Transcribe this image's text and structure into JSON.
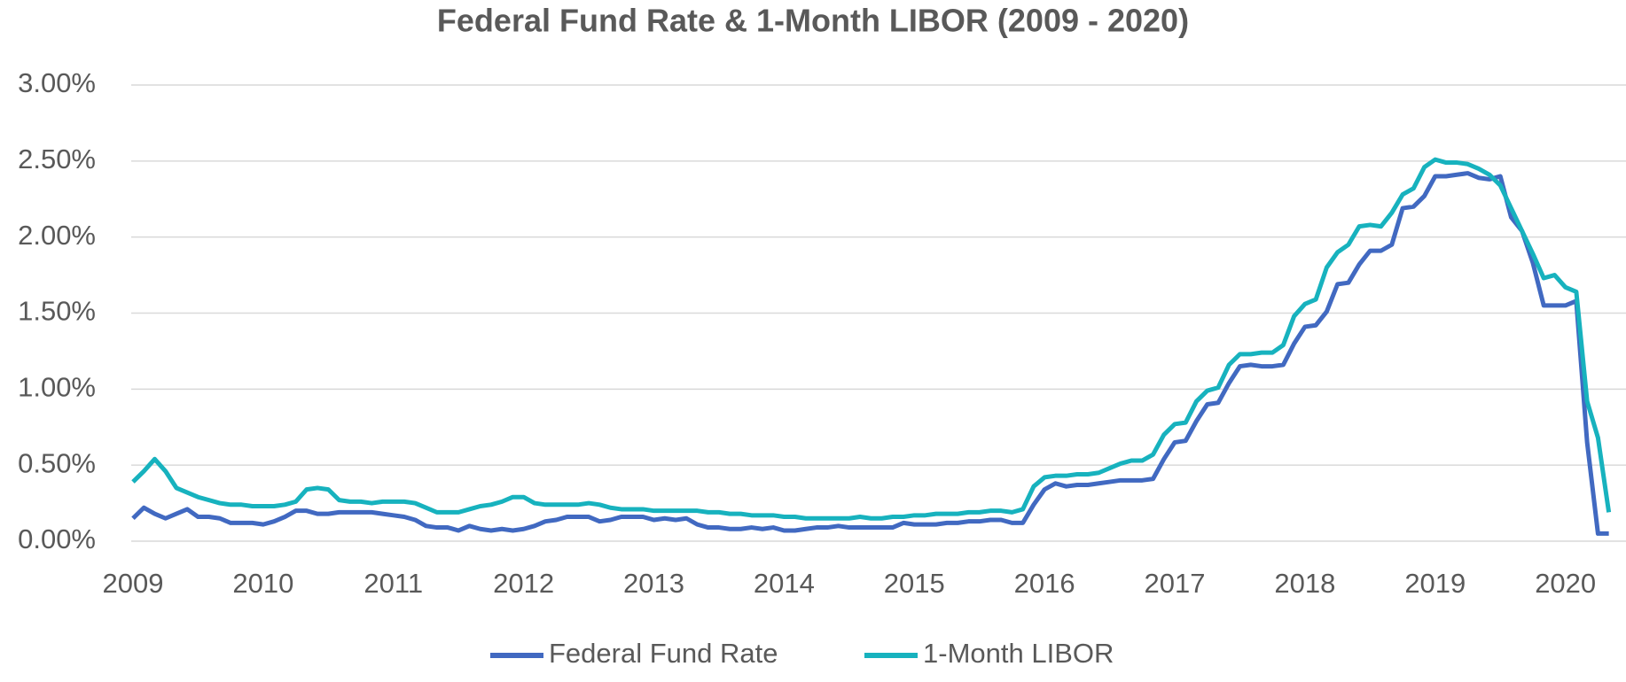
{
  "chart_data": {
    "type": "line",
    "title": "Federal Fund Rate & 1-Month LIBOR (2009 - 2020)",
    "categories": [
      "2009",
      null,
      null,
      null,
      null,
      null,
      null,
      null,
      null,
      null,
      null,
      null,
      "2010",
      null,
      null,
      null,
      null,
      null,
      null,
      null,
      null,
      null,
      null,
      null,
      "2011",
      null,
      null,
      null,
      null,
      null,
      null,
      null,
      null,
      null,
      null,
      null,
      "2012",
      null,
      null,
      null,
      null,
      null,
      null,
      null,
      null,
      null,
      null,
      null,
      "2013",
      null,
      null,
      null,
      null,
      null,
      null,
      null,
      null,
      null,
      null,
      null,
      "2014",
      null,
      null,
      null,
      null,
      null,
      null,
      null,
      null,
      null,
      null,
      null,
      "2015",
      null,
      null,
      null,
      null,
      null,
      null,
      null,
      null,
      null,
      null,
      null,
      "2016",
      null,
      null,
      null,
      null,
      null,
      null,
      null,
      null,
      null,
      null,
      null,
      "2017",
      null,
      null,
      null,
      null,
      null,
      null,
      null,
      null,
      null,
      null,
      null,
      "2018",
      null,
      null,
      null,
      null,
      null,
      null,
      null,
      null,
      null,
      null,
      null,
      "2019",
      null,
      null,
      null,
      null,
      null,
      null,
      null,
      null,
      null,
      null,
      null,
      "2020",
      null,
      null,
      null,
      null
    ],
    "series": [
      {
        "name": "Federal Fund Rate",
        "color": "#4169c1",
        "values": [
          0.15,
          0.22,
          0.18,
          0.15,
          0.18,
          0.21,
          0.16,
          0.16,
          0.15,
          0.12,
          0.12,
          0.12,
          0.11,
          0.13,
          0.16,
          0.2,
          0.2,
          0.18,
          0.18,
          0.19,
          0.19,
          0.19,
          0.19,
          0.18,
          0.17,
          0.16,
          0.14,
          0.1,
          0.09,
          0.09,
          0.07,
          0.1,
          0.08,
          0.07,
          0.08,
          0.07,
          0.08,
          0.1,
          0.13,
          0.14,
          0.16,
          0.16,
          0.16,
          0.13,
          0.14,
          0.16,
          0.16,
          0.16,
          0.14,
          0.15,
          0.14,
          0.15,
          0.11,
          0.09,
          0.09,
          0.08,
          0.08,
          0.09,
          0.08,
          0.09,
          0.07,
          0.07,
          0.08,
          0.09,
          0.09,
          0.1,
          0.09,
          0.09,
          0.09,
          0.09,
          0.09,
          0.12,
          0.11,
          0.11,
          0.11,
          0.12,
          0.12,
          0.13,
          0.13,
          0.14,
          0.14,
          0.12,
          0.12,
          0.24,
          0.34,
          0.38,
          0.36,
          0.37,
          0.37,
          0.38,
          0.39,
          0.4,
          0.4,
          0.4,
          0.41,
          0.54,
          0.65,
          0.66,
          0.79,
          0.9,
          0.91,
          1.04,
          1.15,
          1.16,
          1.15,
          1.15,
          1.16,
          1.3,
          1.41,
          1.42,
          1.51,
          1.69,
          1.7,
          1.82,
          1.91,
          1.91,
          1.95,
          2.19,
          2.2,
          2.27,
          2.4,
          2.4,
          2.41,
          2.42,
          2.39,
          2.38,
          2.4,
          2.13,
          2.04,
          1.83,
          1.55,
          1.55,
          1.55,
          1.58,
          0.65,
          0.05,
          0.05
        ]
      },
      {
        "name": "1-Month LIBOR",
        "color": "#17b2be",
        "values": [
          0.39,
          0.46,
          0.54,
          0.46,
          0.35,
          0.32,
          0.29,
          0.27,
          0.25,
          0.24,
          0.24,
          0.23,
          0.23,
          0.23,
          0.24,
          0.26,
          0.34,
          0.35,
          0.34,
          0.27,
          0.26,
          0.26,
          0.25,
          0.26,
          0.26,
          0.26,
          0.25,
          0.22,
          0.19,
          0.19,
          0.19,
          0.21,
          0.23,
          0.24,
          0.26,
          0.29,
          0.29,
          0.25,
          0.24,
          0.24,
          0.24,
          0.24,
          0.25,
          0.24,
          0.22,
          0.21,
          0.21,
          0.21,
          0.2,
          0.2,
          0.2,
          0.2,
          0.2,
          0.19,
          0.19,
          0.18,
          0.18,
          0.17,
          0.17,
          0.17,
          0.16,
          0.16,
          0.15,
          0.15,
          0.15,
          0.15,
          0.15,
          0.16,
          0.15,
          0.15,
          0.16,
          0.16,
          0.17,
          0.17,
          0.18,
          0.18,
          0.18,
          0.19,
          0.19,
          0.2,
          0.2,
          0.19,
          0.21,
          0.36,
          0.42,
          0.43,
          0.43,
          0.44,
          0.44,
          0.45,
          0.48,
          0.51,
          0.53,
          0.53,
          0.57,
          0.7,
          0.77,
          0.78,
          0.92,
          0.99,
          1.01,
          1.16,
          1.23,
          1.23,
          1.24,
          1.24,
          1.29,
          1.48,
          1.56,
          1.59,
          1.8,
          1.9,
          1.95,
          2.07,
          2.08,
          2.07,
          2.16,
          2.28,
          2.32,
          2.46,
          2.51,
          2.49,
          2.49,
          2.48,
          2.45,
          2.41,
          2.34,
          2.19,
          2.04,
          1.89,
          1.73,
          1.75,
          1.67,
          1.64,
          0.92,
          0.68,
          0.19
        ]
      }
    ],
    "ylim": [
      0,
      3
    ],
    "yticks": [
      {
        "value": 0,
        "label": "0.00%"
      },
      {
        "value": 0.5,
        "label": "0.50%"
      },
      {
        "value": 1,
        "label": "1.00%"
      },
      {
        "value": 1.5,
        "label": "1.50%"
      },
      {
        "value": 2,
        "label": "2.00%"
      },
      {
        "value": 2.5,
        "label": "2.50%"
      },
      {
        "value": 3,
        "label": "3.00%"
      }
    ],
    "grid": true
  }
}
